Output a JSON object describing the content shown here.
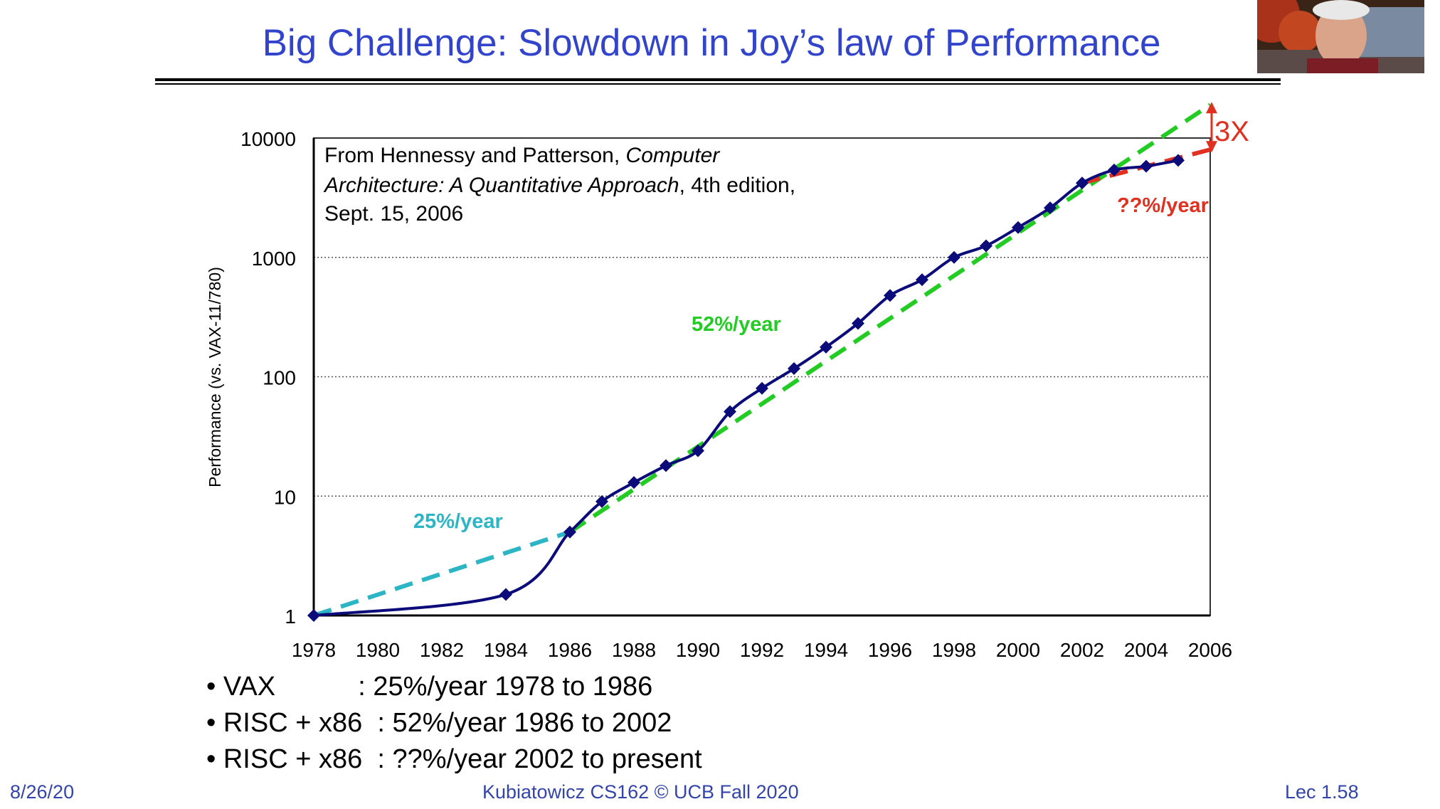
{
  "slide": {
    "title": "Big Challenge: Slowdown in Joy’s law of Performance",
    "bullets": [
      "• VAX           : 25%/year 1978 to 1986",
      "• RISC + x86  : 52%/year 1986 to 2002",
      "• RISC + x86  : ??%/year 2002 to present"
    ],
    "footer": {
      "date": "8/26/20",
      "course": "Kubiatowicz CS162 © UCB Fall 2020",
      "lecture": "Lec 1.58"
    }
  },
  "chart_data": {
    "type": "line",
    "title": "",
    "xlabel": "",
    "ylabel": "Performance (vs. VAX-11/780)",
    "yscale": "log",
    "xlim": [
      1978,
      2006
    ],
    "ylim": [
      1,
      10000
    ],
    "x_ticks": [
      "1978",
      "1980",
      "1982",
      "1984",
      "1986",
      "1988",
      "1990",
      "1992",
      "1994",
      "1996",
      "1998",
      "2000",
      "2002",
      "2004",
      "2006"
    ],
    "y_ticks": [
      "1",
      "10",
      "100",
      "1000",
      "10000"
    ],
    "grid": "horizontal dotted",
    "source_note": {
      "line1_plain": "From Hennessy and Patterson, ",
      "line1_italic": "Computer",
      "line2_italic": "Architecture: A Quantitative Approach",
      "line2_plain": ", 4th edition,",
      "line3_plain": "Sept. 15, 2006"
    },
    "series": [
      {
        "color": "#0b0b7a",
        "points": [
          [
            1978,
            1
          ],
          [
            1984,
            1.5
          ],
          [
            1986,
            5
          ],
          [
            1987,
            9
          ],
          [
            1988,
            13
          ],
          [
            1989,
            18
          ],
          [
            1990,
            24
          ],
          [
            1991,
            51
          ],
          [
            1992,
            80
          ],
          [
            1993,
            117
          ],
          [
            1994,
            177
          ],
          [
            1995,
            280
          ],
          [
            1996,
            480
          ],
          [
            1997,
            650
          ],
          [
            1998,
            1000
          ],
          [
            1999,
            1250
          ],
          [
            2000,
            1780
          ],
          [
            2001,
            2600
          ],
          [
            2002,
            4200
          ],
          [
            2003,
            5400
          ],
          [
            2004,
            5800
          ],
          [
            2005,
            6500
          ]
        ]
      }
    ],
    "trend_lines": [
      {
        "label": "25%/year",
        "color": "#2bb5c5",
        "from": [
          1978,
          1
        ],
        "to": [
          1986,
          5
        ]
      },
      {
        "label": "52%/year",
        "color": "#22cc22",
        "from": [
          1986,
          5
        ],
        "to": [
          2006,
          19000
        ]
      },
      {
        "label": "??%/year",
        "color": "#e03020",
        "from": [
          2002,
          4200
        ],
        "to": [
          2006,
          8000
        ]
      }
    ],
    "annotation": {
      "label": "3X",
      "color": "#e03020"
    }
  }
}
